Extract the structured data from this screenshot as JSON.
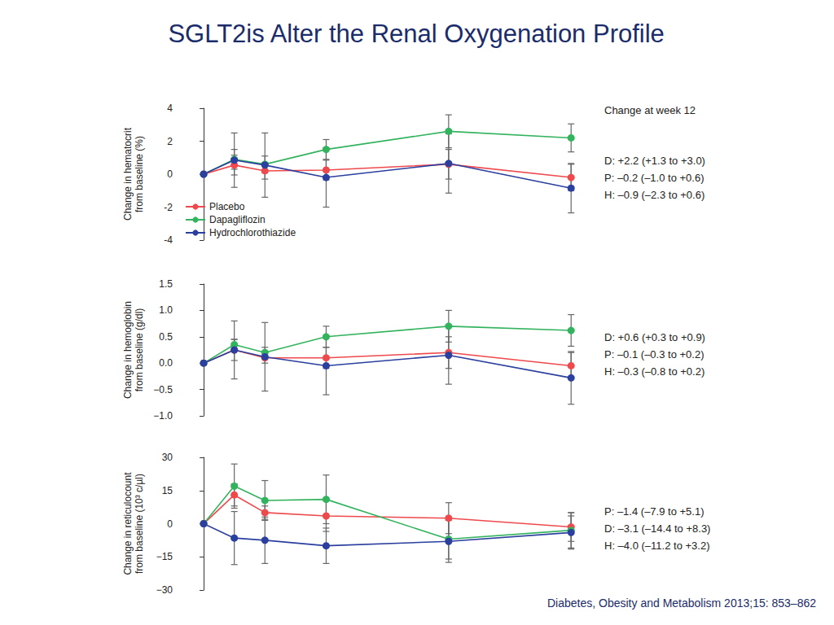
{
  "title": "SGLT2is Alter the Renal Oxygenation Profile",
  "source": "Diabetes, Obesity and Metabolism 2013;15: 853–862",
  "chart_data": [
    {
      "type": "line",
      "y_label": "Change in hematocrit\nfrom baseline (%)",
      "x": [
        0,
        1,
        2,
        4,
        8,
        12
      ],
      "xlim": [
        -0.8,
        12.5
      ],
      "ylim": [
        -4,
        4
      ],
      "yticks": [
        -4,
        -2,
        0,
        2,
        4
      ],
      "grid": false,
      "tick_labels": "y",
      "legend": "lower left",
      "marker": "circle",
      "series": [
        {
          "name": "Placebo",
          "color": "#ee4a4d",
          "values": [
            0,
            0.55,
            0.2,
            0.25,
            0.6,
            -0.2
          ],
          "errors": [
            null,
            0.6,
            0.5,
            0.6,
            0.9,
            0.8
          ]
        },
        {
          "name": "Dapagliflozin",
          "color": "#33b35e",
          "values": [
            0,
            0.9,
            0.6,
            1.5,
            2.6,
            2.2
          ],
          "errors": [
            null,
            0.6,
            0.5,
            0.6,
            1.0,
            0.85
          ]
        },
        {
          "name": "Hydrochlorothiazide",
          "color": "#2a3f9e",
          "values": [
            0,
            0.85,
            0.55,
            -0.2,
            0.65,
            -0.85
          ],
          "errors": [
            null,
            1.65,
            1.95,
            1.8,
            1.8,
            1.5
          ]
        }
      ],
      "annotations": [
        "Change at week 12",
        "D: +2.2 (+1.3 to +3.0)",
        "P: –0.2 (–1.0 to +0.6)",
        "H: –0.9 (–2.3 to +0.6)"
      ]
    },
    {
      "type": "line",
      "y_label": "Change in hemoglobin\nfrom baseline (g/dl)",
      "x": [
        0,
        1,
        2,
        4,
        8,
        12
      ],
      "xlim": [
        -0.8,
        12.5
      ],
      "ylim": [
        -1,
        1.5
      ],
      "yticks": [
        {
          "value": -1,
          "label": "−1.0"
        },
        {
          "value": -0.5,
          "label": "−0.5"
        },
        {
          "value": 0,
          "label": "0.0"
        },
        {
          "value": 0.5,
          "label": "0.5"
        },
        {
          "value": 1,
          "label": "1.0"
        },
        {
          "value": 1.5,
          "label": "1.5"
        }
      ],
      "grid": false,
      "tick_labels": "y",
      "marker": "circle",
      "series": [
        {
          "name": "Placebo",
          "color": "#ee4a4d",
          "values": [
            0,
            0.25,
            0.1,
            0.1,
            0.2,
            -0.05
          ],
          "errors": [
            null,
            0.2,
            0.1,
            0.2,
            0.3,
            0.25
          ]
        },
        {
          "name": "Dapagliflozin",
          "color": "#33b35e",
          "values": [
            0,
            0.35,
            0.2,
            0.5,
            0.7,
            0.62
          ],
          "errors": [
            null,
            0.1,
            0.1,
            0.2,
            0.3,
            0.3
          ]
        },
        {
          "name": "Hydrochlorothiazide",
          "color": "#2a3f9e",
          "values": [
            0,
            0.25,
            0.12,
            -0.05,
            0.15,
            -0.28
          ],
          "errors": [
            null,
            0.55,
            0.65,
            0.55,
            0.55,
            0.5
          ]
        }
      ],
      "annotations": [
        "D: +0.6 (+0.3 to +0.9)",
        "P: –0.1 (–0.3 to +0.2)",
        "H: –0.3 (–0.8 to +0.2)"
      ]
    },
    {
      "type": "line",
      "y_label": "Change in reticulocount\nfrom baseline (10³ c/µl)",
      "x": [
        0,
        1,
        2,
        4,
        8,
        12
      ],
      "xlim": [
        -0.8,
        12.5
      ],
      "ylim": [
        -30,
        30
      ],
      "yticks": [
        {
          "value": -30,
          "label": "−30"
        },
        {
          "value": -15,
          "label": "−15"
        },
        0,
        15,
        30
      ],
      "grid": false,
      "tick_labels": "y",
      "marker": "circle",
      "series": [
        {
          "name": "Placebo",
          "color": "#ee4a4d",
          "values": [
            0,
            13,
            5,
            3.5,
            2.5,
            -1.5
          ],
          "errors": [
            null,
            5,
            3,
            7,
            7,
            6.5
          ]
        },
        {
          "name": "Dapagliflozin",
          "color": "#33b35e",
          "values": [
            0,
            17,
            10.5,
            11,
            -7,
            -3
          ],
          "errors": [
            null,
            10,
            9,
            11,
            9,
            8
          ]
        },
        {
          "name": "Hydrochlorothiazide",
          "color": "#2a3f9e",
          "values": [
            0,
            -6.5,
            -7.5,
            -10,
            -8,
            -4
          ],
          "errors": [
            null,
            12,
            10.5,
            8,
            9.5,
            7.5
          ]
        }
      ],
      "annotations": [
        "P: –1.4 (–7.9 to +5.1)",
        "D: –3.1 (–14.4 to +8.3)",
        "H: –4.0 (–11.2 to +3.2)"
      ]
    }
  ]
}
